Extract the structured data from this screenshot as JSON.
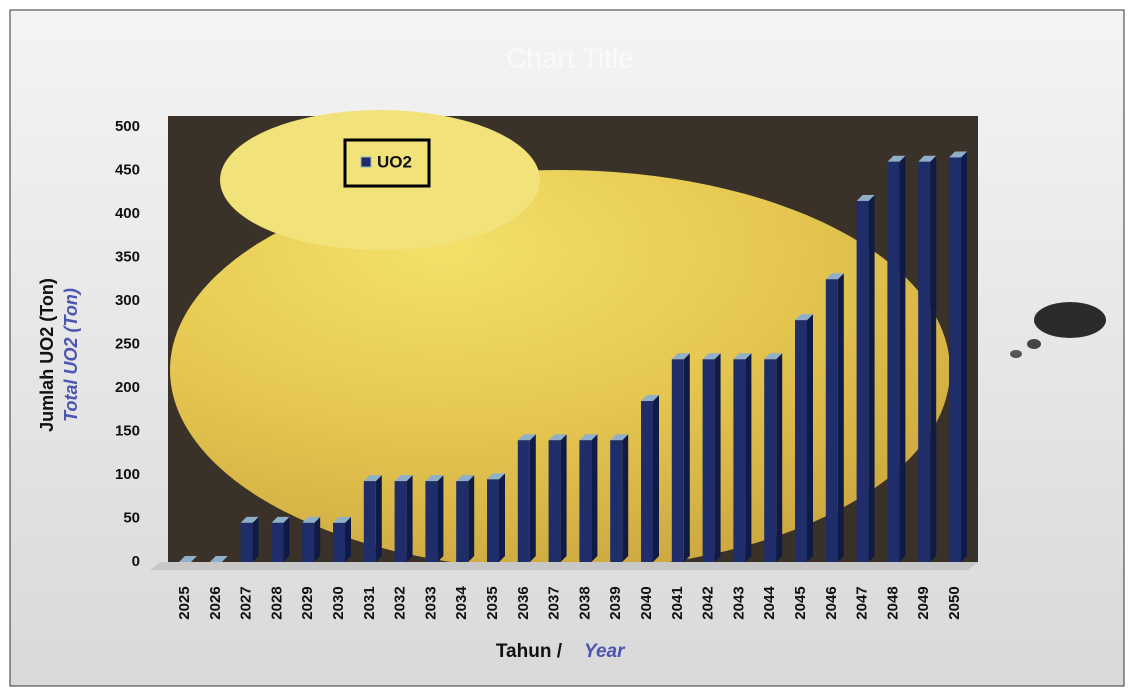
{
  "chart_data": {
    "type": "bar3d",
    "title": "Chart Title",
    "ylabel": {
      "text": "Jumlah UO2 (Ton)",
      "translation": "Total UO2 (Ton)"
    },
    "xlabel": {
      "text": "Tahun /",
      "translation": "Year"
    },
    "categories": [
      "2025",
      "2026",
      "2027",
      "2028",
      "2029",
      "2030",
      "2031",
      "2032",
      "2033",
      "2034",
      "2035",
      "2036",
      "2037",
      "2038",
      "2039",
      "2040",
      "2041",
      "2042",
      "2043",
      "2044",
      "2045",
      "2046",
      "2047",
      "2048",
      "2049",
      "2050"
    ],
    "series": [
      {
        "name": "UO2",
        "color": "#1f2d6b",
        "values": [
          0,
          0,
          45,
          45,
          45,
          45,
          93,
          93,
          93,
          93,
          95,
          140,
          140,
          140,
          140,
          185,
          233,
          233,
          233,
          233,
          278,
          325,
          415,
          460,
          460,
          465
        ]
      }
    ],
    "ylim": [
      0,
      500
    ],
    "yticks": [
      0,
      50,
      100,
      150,
      200,
      250,
      300,
      350,
      400,
      450,
      500
    ],
    "legend": "top-left"
  }
}
